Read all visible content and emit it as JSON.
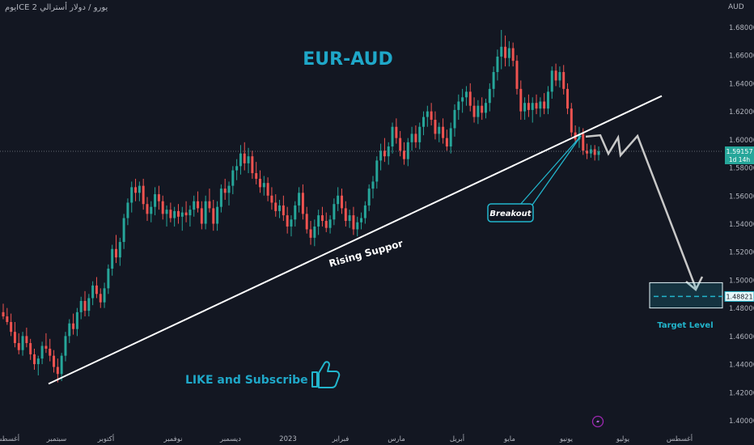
{
  "symbol_label": "يورو / دولار أسترالي ICE 2يوم",
  "currency": "AUD",
  "price_badge": {
    "value": "1.59157",
    "countdown": "1d 14h"
  },
  "target_badge": "1.48821",
  "colors": {
    "background": "#131722",
    "up_candle": "#26a69a",
    "down_candle": "#ef5350",
    "title": "#1fa7c8",
    "accent": "#22b5cc",
    "support_line": "#ffffff",
    "projection": "#c8c8c8"
  },
  "chart_data": {
    "type": "candlestick",
    "title": "EUR-AUD",
    "ylim": [
      1.39,
      1.69
    ],
    "y_ticks": [
      "1.68000",
      "1.66000",
      "1.64000",
      "1.62000",
      "1.60000",
      "1.58000",
      "1.56000",
      "1.54000",
      "1.52000",
      "1.50000",
      "1.48000",
      "1.46000",
      "1.44000",
      "1.42000",
      "1.40000"
    ],
    "x_ticks": [
      "أغسطس",
      "سبتمبر",
      "أكتوبر",
      "نوفمبر",
      "ديسمبر",
      "2023",
      "فبراير",
      "مارس",
      "أبريل",
      "مايو",
      "يونيو",
      "يوليو",
      "أغسطس"
    ],
    "current_price": 1.59157,
    "annotations": {
      "rising_support": "Rising Suppor",
      "breakout": "Breakout",
      "target_level": "Target Level",
      "like_subscribe": "LIKE and Subscribe"
    },
    "support_line": {
      "start": [
        "2022-09-01",
        1.426
      ],
      "end": [
        "2023-07-15",
        1.631
      ]
    },
    "target_zone": [
      1.48,
      1.498
    ],
    "projection_path": [
      1.6,
      1.59,
      1.604,
      1.497
    ],
    "candles": [
      {
        "o": 1.477,
        "h": 1.483,
        "l": 1.472,
        "c": 1.474
      },
      {
        "o": 1.474,
        "h": 1.48,
        "l": 1.468,
        "c": 1.47
      },
      {
        "o": 1.47,
        "h": 1.476,
        "l": 1.46,
        "c": 1.463
      },
      {
        "o": 1.463,
        "h": 1.47,
        "l": 1.452,
        "c": 1.455
      },
      {
        "o": 1.455,
        "h": 1.462,
        "l": 1.447,
        "c": 1.45
      },
      {
        "o": 1.45,
        "h": 1.463,
        "l": 1.446,
        "c": 1.46
      },
      {
        "o": 1.46,
        "h": 1.466,
        "l": 1.452,
        "c": 1.455
      },
      {
        "o": 1.455,
        "h": 1.458,
        "l": 1.443,
        "c": 1.447
      },
      {
        "o": 1.447,
        "h": 1.451,
        "l": 1.436,
        "c": 1.44
      },
      {
        "o": 1.44,
        "h": 1.446,
        "l": 1.432,
        "c": 1.444
      },
      {
        "o": 1.444,
        "h": 1.456,
        "l": 1.44,
        "c": 1.453
      },
      {
        "o": 1.453,
        "h": 1.462,
        "l": 1.448,
        "c": 1.451
      },
      {
        "o": 1.451,
        "h": 1.458,
        "l": 1.442,
        "c": 1.446
      },
      {
        "o": 1.446,
        "h": 1.45,
        "l": 1.434,
        "c": 1.438
      },
      {
        "o": 1.438,
        "h": 1.444,
        "l": 1.427,
        "c": 1.433
      },
      {
        "o": 1.433,
        "h": 1.448,
        "l": 1.428,
        "c": 1.446
      },
      {
        "o": 1.446,
        "h": 1.463,
        "l": 1.442,
        "c": 1.46
      },
      {
        "o": 1.46,
        "h": 1.472,
        "l": 1.455,
        "c": 1.469
      },
      {
        "o": 1.469,
        "h": 1.476,
        "l": 1.461,
        "c": 1.465
      },
      {
        "o": 1.465,
        "h": 1.48,
        "l": 1.46,
        "c": 1.477
      },
      {
        "o": 1.477,
        "h": 1.488,
        "l": 1.472,
        "c": 1.485
      },
      {
        "o": 1.485,
        "h": 1.492,
        "l": 1.474,
        "c": 1.478
      },
      {
        "o": 1.478,
        "h": 1.49,
        "l": 1.474,
        "c": 1.487
      },
      {
        "o": 1.487,
        "h": 1.499,
        "l": 1.482,
        "c": 1.496
      },
      {
        "o": 1.496,
        "h": 1.502,
        "l": 1.487,
        "c": 1.49
      },
      {
        "o": 1.49,
        "h": 1.494,
        "l": 1.48,
        "c": 1.484
      },
      {
        "o": 1.484,
        "h": 1.498,
        "l": 1.48,
        "c": 1.494
      },
      {
        "o": 1.494,
        "h": 1.511,
        "l": 1.49,
        "c": 1.508
      },
      {
        "o": 1.508,
        "h": 1.525,
        "l": 1.503,
        "c": 1.522
      },
      {
        "o": 1.522,
        "h": 1.532,
        "l": 1.512,
        "c": 1.516
      },
      {
        "o": 1.516,
        "h": 1.53,
        "l": 1.51,
        "c": 1.527
      },
      {
        "o": 1.527,
        "h": 1.547,
        "l": 1.522,
        "c": 1.544
      },
      {
        "o": 1.544,
        "h": 1.558,
        "l": 1.539,
        "c": 1.555
      },
      {
        "o": 1.555,
        "h": 1.57,
        "l": 1.548,
        "c": 1.566
      },
      {
        "o": 1.566,
        "h": 1.572,
        "l": 1.556,
        "c": 1.562
      },
      {
        "o": 1.562,
        "h": 1.57,
        "l": 1.556,
        "c": 1.567
      },
      {
        "o": 1.567,
        "h": 1.572,
        "l": 1.55,
        "c": 1.554
      },
      {
        "o": 1.554,
        "h": 1.559,
        "l": 1.542,
        "c": 1.547
      },
      {
        "o": 1.547,
        "h": 1.556,
        "l": 1.541,
        "c": 1.552
      },
      {
        "o": 1.552,
        "h": 1.566,
        "l": 1.546,
        "c": 1.561
      },
      {
        "o": 1.561,
        "h": 1.567,
        "l": 1.55,
        "c": 1.556
      },
      {
        "o": 1.556,
        "h": 1.56,
        "l": 1.543,
        "c": 1.547
      },
      {
        "o": 1.547,
        "h": 1.553,
        "l": 1.538,
        "c": 1.55
      },
      {
        "o": 1.55,
        "h": 1.555,
        "l": 1.541,
        "c": 1.544
      },
      {
        "o": 1.544,
        "h": 1.552,
        "l": 1.538,
        "c": 1.549
      },
      {
        "o": 1.549,
        "h": 1.554,
        "l": 1.54,
        "c": 1.545
      },
      {
        "o": 1.545,
        "h": 1.552,
        "l": 1.535,
        "c": 1.548
      },
      {
        "o": 1.548,
        "h": 1.556,
        "l": 1.541,
        "c": 1.546
      },
      {
        "o": 1.546,
        "h": 1.553,
        "l": 1.538,
        "c": 1.55
      },
      {
        "o": 1.55,
        "h": 1.56,
        "l": 1.545,
        "c": 1.556
      },
      {
        "o": 1.556,
        "h": 1.563,
        "l": 1.548,
        "c": 1.551
      },
      {
        "o": 1.551,
        "h": 1.556,
        "l": 1.536,
        "c": 1.54
      },
      {
        "o": 1.54,
        "h": 1.56,
        "l": 1.536,
        "c": 1.556
      },
      {
        "o": 1.556,
        "h": 1.565,
        "l": 1.548,
        "c": 1.551
      },
      {
        "o": 1.551,
        "h": 1.557,
        "l": 1.535,
        "c": 1.54
      },
      {
        "o": 1.54,
        "h": 1.556,
        "l": 1.535,
        "c": 1.552
      },
      {
        "o": 1.552,
        "h": 1.568,
        "l": 1.548,
        "c": 1.565
      },
      {
        "o": 1.565,
        "h": 1.572,
        "l": 1.557,
        "c": 1.562
      },
      {
        "o": 1.562,
        "h": 1.57,
        "l": 1.553,
        "c": 1.567
      },
      {
        "o": 1.567,
        "h": 1.581,
        "l": 1.561,
        "c": 1.578
      },
      {
        "o": 1.578,
        "h": 1.586,
        "l": 1.571,
        "c": 1.581
      },
      {
        "o": 1.581,
        "h": 1.596,
        "l": 1.575,
        "c": 1.59
      },
      {
        "o": 1.59,
        "h": 1.598,
        "l": 1.578,
        "c": 1.583
      },
      {
        "o": 1.583,
        "h": 1.594,
        "l": 1.576,
        "c": 1.588
      },
      {
        "o": 1.588,
        "h": 1.592,
        "l": 1.572,
        "c": 1.576
      },
      {
        "o": 1.576,
        "h": 1.584,
        "l": 1.568,
        "c": 1.572
      },
      {
        "o": 1.572,
        "h": 1.578,
        "l": 1.562,
        "c": 1.566
      },
      {
        "o": 1.566,
        "h": 1.574,
        "l": 1.56,
        "c": 1.569
      },
      {
        "o": 1.569,
        "h": 1.573,
        "l": 1.556,
        "c": 1.56
      },
      {
        "o": 1.56,
        "h": 1.566,
        "l": 1.55,
        "c": 1.555
      },
      {
        "o": 1.555,
        "h": 1.561,
        "l": 1.545,
        "c": 1.549
      },
      {
        "o": 1.549,
        "h": 1.557,
        "l": 1.544,
        "c": 1.553
      },
      {
        "o": 1.553,
        "h": 1.56,
        "l": 1.542,
        "c": 1.546
      },
      {
        "o": 1.546,
        "h": 1.552,
        "l": 1.533,
        "c": 1.538
      },
      {
        "o": 1.538,
        "h": 1.546,
        "l": 1.531,
        "c": 1.543
      },
      {
        "o": 1.543,
        "h": 1.556,
        "l": 1.538,
        "c": 1.553
      },
      {
        "o": 1.553,
        "h": 1.566,
        "l": 1.548,
        "c": 1.562
      },
      {
        "o": 1.562,
        "h": 1.568,
        "l": 1.543,
        "c": 1.547
      },
      {
        "o": 1.547,
        "h": 1.552,
        "l": 1.533,
        "c": 1.536
      },
      {
        "o": 1.536,
        "h": 1.542,
        "l": 1.525,
        "c": 1.53
      },
      {
        "o": 1.53,
        "h": 1.543,
        "l": 1.524,
        "c": 1.538
      },
      {
        "o": 1.538,
        "h": 1.55,
        "l": 1.532,
        "c": 1.546
      },
      {
        "o": 1.546,
        "h": 1.552,
        "l": 1.538,
        "c": 1.542
      },
      {
        "o": 1.542,
        "h": 1.548,
        "l": 1.534,
        "c": 1.537
      },
      {
        "o": 1.537,
        "h": 1.546,
        "l": 1.533,
        "c": 1.543
      },
      {
        "o": 1.543,
        "h": 1.558,
        "l": 1.539,
        "c": 1.554
      },
      {
        "o": 1.554,
        "h": 1.566,
        "l": 1.549,
        "c": 1.56
      },
      {
        "o": 1.56,
        "h": 1.565,
        "l": 1.547,
        "c": 1.551
      },
      {
        "o": 1.551,
        "h": 1.556,
        "l": 1.538,
        "c": 1.542
      },
      {
        "o": 1.542,
        "h": 1.55,
        "l": 1.537,
        "c": 1.546
      },
      {
        "o": 1.546,
        "h": 1.552,
        "l": 1.532,
        "c": 1.536
      },
      {
        "o": 1.536,
        "h": 1.545,
        "l": 1.531,
        "c": 1.541
      },
      {
        "o": 1.541,
        "h": 1.548,
        "l": 1.536,
        "c": 1.544
      },
      {
        "o": 1.544,
        "h": 1.556,
        "l": 1.54,
        "c": 1.553
      },
      {
        "o": 1.553,
        "h": 1.568,
        "l": 1.549,
        "c": 1.565
      },
      {
        "o": 1.565,
        "h": 1.574,
        "l": 1.558,
        "c": 1.57
      },
      {
        "o": 1.57,
        "h": 1.588,
        "l": 1.565,
        "c": 1.585
      },
      {
        "o": 1.585,
        "h": 1.597,
        "l": 1.578,
        "c": 1.592
      },
      {
        "o": 1.592,
        "h": 1.601,
        "l": 1.584,
        "c": 1.588
      },
      {
        "o": 1.588,
        "h": 1.598,
        "l": 1.582,
        "c": 1.595
      },
      {
        "o": 1.595,
        "h": 1.612,
        "l": 1.59,
        "c": 1.609
      },
      {
        "o": 1.609,
        "h": 1.615,
        "l": 1.597,
        "c": 1.601
      },
      {
        "o": 1.601,
        "h": 1.606,
        "l": 1.588,
        "c": 1.592
      },
      {
        "o": 1.592,
        "h": 1.598,
        "l": 1.582,
        "c": 1.586
      },
      {
        "o": 1.586,
        "h": 1.601,
        "l": 1.581,
        "c": 1.598
      },
      {
        "o": 1.598,
        "h": 1.609,
        "l": 1.592,
        "c": 1.604
      },
      {
        "o": 1.604,
        "h": 1.61,
        "l": 1.594,
        "c": 1.598
      },
      {
        "o": 1.598,
        "h": 1.612,
        "l": 1.593,
        "c": 1.609
      },
      {
        "o": 1.609,
        "h": 1.62,
        "l": 1.603,
        "c": 1.616
      },
      {
        "o": 1.616,
        "h": 1.624,
        "l": 1.609,
        "c": 1.62
      },
      {
        "o": 1.62,
        "h": 1.626,
        "l": 1.61,
        "c": 1.614
      },
      {
        "o": 1.614,
        "h": 1.62,
        "l": 1.6,
        "c": 1.604
      },
      {
        "o": 1.604,
        "h": 1.612,
        "l": 1.598,
        "c": 1.609
      },
      {
        "o": 1.609,
        "h": 1.615,
        "l": 1.597,
        "c": 1.601
      },
      {
        "o": 1.601,
        "h": 1.607,
        "l": 1.592,
        "c": 1.595
      },
      {
        "o": 1.595,
        "h": 1.612,
        "l": 1.59,
        "c": 1.608
      },
      {
        "o": 1.608,
        "h": 1.625,
        "l": 1.602,
        "c": 1.621
      },
      {
        "o": 1.621,
        "h": 1.632,
        "l": 1.614,
        "c": 1.627
      },
      {
        "o": 1.627,
        "h": 1.636,
        "l": 1.619,
        "c": 1.63
      },
      {
        "o": 1.63,
        "h": 1.638,
        "l": 1.624,
        "c": 1.634
      },
      {
        "o": 1.634,
        "h": 1.64,
        "l": 1.62,
        "c": 1.624
      },
      {
        "o": 1.624,
        "h": 1.63,
        "l": 1.612,
        "c": 1.616
      },
      {
        "o": 1.616,
        "h": 1.628,
        "l": 1.611,
        "c": 1.624
      },
      {
        "o": 1.624,
        "h": 1.63,
        "l": 1.614,
        "c": 1.619
      },
      {
        "o": 1.619,
        "h": 1.629,
        "l": 1.615,
        "c": 1.626
      },
      {
        "o": 1.626,
        "h": 1.64,
        "l": 1.62,
        "c": 1.636
      },
      {
        "o": 1.636,
        "h": 1.652,
        "l": 1.63,
        "c": 1.648
      },
      {
        "o": 1.648,
        "h": 1.664,
        "l": 1.642,
        "c": 1.659
      },
      {
        "o": 1.659,
        "h": 1.678,
        "l": 1.65,
        "c": 1.666
      },
      {
        "o": 1.666,
        "h": 1.674,
        "l": 1.652,
        "c": 1.658
      },
      {
        "o": 1.658,
        "h": 1.67,
        "l": 1.652,
        "c": 1.665
      },
      {
        "o": 1.665,
        "h": 1.669,
        "l": 1.652,
        "c": 1.656
      },
      {
        "o": 1.656,
        "h": 1.66,
        "l": 1.632,
        "c": 1.636
      },
      {
        "o": 1.636,
        "h": 1.642,
        "l": 1.614,
        "c": 1.62
      },
      {
        "o": 1.62,
        "h": 1.63,
        "l": 1.614,
        "c": 1.626
      },
      {
        "o": 1.626,
        "h": 1.632,
        "l": 1.616,
        "c": 1.621
      },
      {
        "o": 1.621,
        "h": 1.63,
        "l": 1.612,
        "c": 1.626
      },
      {
        "o": 1.626,
        "h": 1.632,
        "l": 1.618,
        "c": 1.622
      },
      {
        "o": 1.622,
        "h": 1.63,
        "l": 1.616,
        "c": 1.627
      },
      {
        "o": 1.627,
        "h": 1.633,
        "l": 1.618,
        "c": 1.622
      },
      {
        "o": 1.622,
        "h": 1.638,
        "l": 1.618,
        "c": 1.634
      },
      {
        "o": 1.634,
        "h": 1.652,
        "l": 1.629,
        "c": 1.649
      },
      {
        "o": 1.649,
        "h": 1.654,
        "l": 1.638,
        "c": 1.642
      },
      {
        "o": 1.642,
        "h": 1.652,
        "l": 1.637,
        "c": 1.648
      },
      {
        "o": 1.648,
        "h": 1.653,
        "l": 1.632,
        "c": 1.636
      },
      {
        "o": 1.636,
        "h": 1.64,
        "l": 1.618,
        "c": 1.622
      },
      {
        "o": 1.622,
        "h": 1.626,
        "l": 1.602,
        "c": 1.605
      },
      {
        "o": 1.605,
        "h": 1.61,
        "l": 1.597,
        "c": 1.6
      },
      {
        "o": 1.6,
        "h": 1.609,
        "l": 1.594,
        "c": 1.604
      },
      {
        "o": 1.604,
        "h": 1.608,
        "l": 1.589,
        "c": 1.592
      },
      {
        "o": 1.592,
        "h": 1.597,
        "l": 1.586,
        "c": 1.59
      },
      {
        "o": 1.59,
        "h": 1.596,
        "l": 1.587,
        "c": 1.593
      },
      {
        "o": 1.593,
        "h": 1.596,
        "l": 1.585,
        "c": 1.589
      },
      {
        "o": 1.589,
        "h": 1.595,
        "l": 1.585,
        "c": 1.5916
      }
    ]
  }
}
